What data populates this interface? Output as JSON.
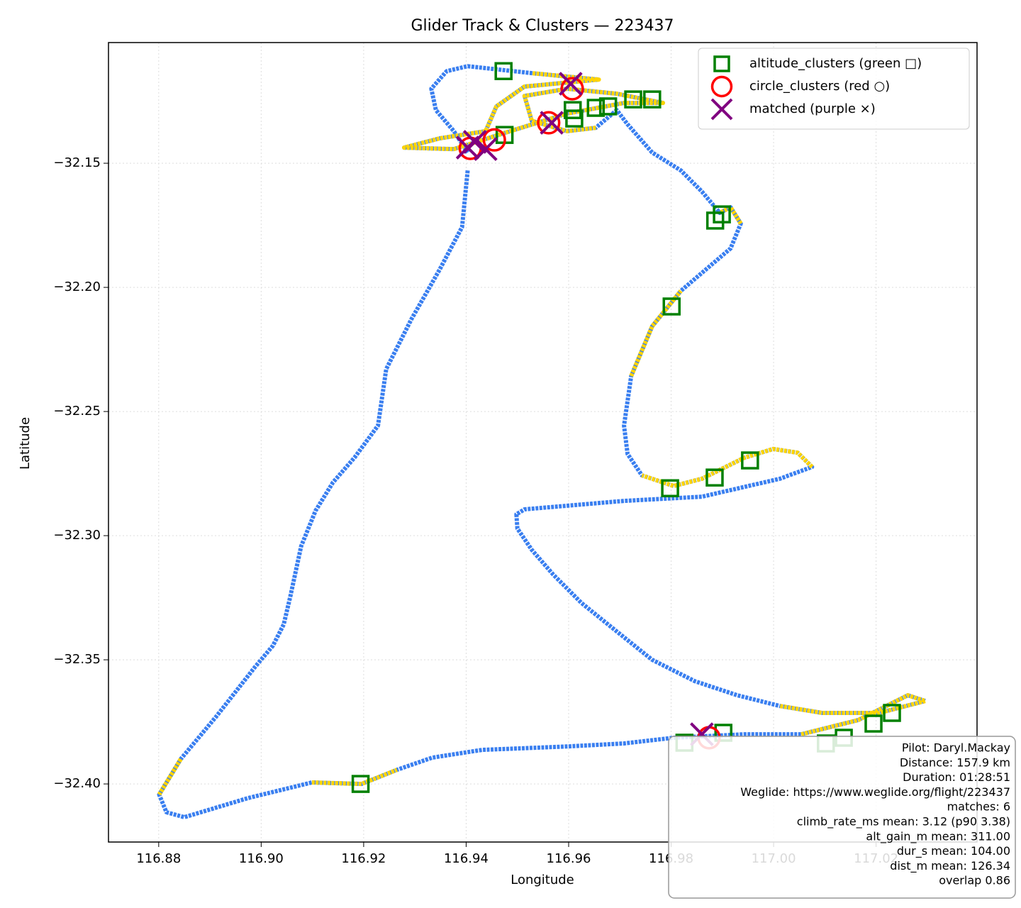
{
  "chart_data": {
    "type": "line",
    "title": "Glider Track & Clusters — 223437",
    "x_label": "Longitude",
    "y_label": "Latitude",
    "xlim": [
      116.8702,
      117.0397
    ],
    "ylim": [
      -32.4234,
      -32.1014
    ],
    "xticks": [
      116.88,
      {
        "value": 116.9,
        "label": "116.90"
      },
      116.92,
      116.94,
      116.96,
      116.98,
      {
        "value": 117,
        "label": "117.00"
      },
      {
        "value": 117.02,
        "label": "117.02"
      }
    ],
    "yticks": [
      {
        "value": -32.15,
        "label": "−32.15"
      },
      {
        "value": -32.2,
        "label": "−32.20"
      },
      {
        "value": -32.25,
        "label": "−32.25"
      },
      {
        "value": -32.3,
        "label": "−32.30"
      },
      {
        "value": -32.35,
        "label": "−32.35"
      },
      {
        "value": -32.4,
        "label": "−32.40"
      }
    ],
    "grid": true,
    "legend": "upper right",
    "series": [
      {
        "marker": "line",
        "color": "#3a7ff0",
        "x": [
          116.9403,
          116.9392,
          116.9348,
          116.9293,
          116.9244,
          116.9228,
          116.9182,
          116.914,
          116.9106,
          116.9078,
          116.9057,
          116.9044,
          116.9023,
          116.8988,
          116.8912,
          116.8843,
          116.8801,
          116.8815,
          116.885,
          116.8974,
          116.9099,
          116.9196,
          116.9265,
          116.9334,
          116.9431,
          116.9597,
          116.9708,
          116.9805,
          116.9943,
          117.0054,
          117.0165,
          117.0262,
          117.0296,
          117.0206,
          117.0095,
          117.0012,
          116.9929,
          116.9846,
          116.9763,
          116.9694,
          116.9625,
          116.957,
          116.9528,
          116.95,
          116.9498,
          116.9514,
          116.9708,
          116.986,
          117.0012,
          117.0075,
          117.0047,
          116.9999,
          116.9943,
          116.986,
          116.9805,
          116.9743,
          116.9715,
          116.9708,
          116.9722,
          116.9763,
          116.9819,
          116.9916,
          116.9936,
          116.9916,
          116.9895,
          116.986,
          116.9819,
          116.9763,
          116.9715,
          116.9694,
          116.9653,
          116.9597,
          116.9528,
          116.9514,
          116.9597,
          116.9694,
          116.9784,
          116.9708,
          116.9597,
          116.9486,
          116.9376,
          116.9279,
          116.9348,
          116.9438,
          116.9459,
          116.9514,
          116.9659,
          116.9528,
          116.9403,
          116.9362,
          116.9332,
          116.9341,
          116.9376,
          116.9403
        ],
        "values": [
          -32.1529,
          -32.1757,
          -32.1929,
          -32.2129,
          -32.2329,
          -32.2557,
          -32.2686,
          -32.2786,
          -32.29,
          -32.3043,
          -32.3243,
          -32.3357,
          -32.3443,
          -32.3529,
          -32.3729,
          -32.39,
          -32.4043,
          -32.4114,
          -32.4134,
          -32.4057,
          -32.3994,
          -32.4,
          -32.3943,
          -32.3894,
          -32.3863,
          -32.3849,
          -32.3837,
          -32.3814,
          -32.38,
          -32.38,
          -32.3743,
          -32.3643,
          -32.3666,
          -32.3714,
          -32.3714,
          -32.3686,
          -32.3643,
          -32.3586,
          -32.35,
          -32.3386,
          -32.3271,
          -32.3157,
          -32.3057,
          -32.2971,
          -32.2914,
          -32.2894,
          -32.286,
          -32.2843,
          -32.2771,
          -32.2723,
          -32.2666,
          -32.2651,
          -32.2686,
          -32.2771,
          -32.28,
          -32.2757,
          -32.2671,
          -32.2557,
          -32.2357,
          -32.2157,
          -32.2014,
          -32.1843,
          -32.1743,
          -32.1677,
          -32.17,
          -32.1614,
          -32.1529,
          -32.1457,
          -32.1343,
          -32.1286,
          -32.1357,
          -32.1371,
          -32.1329,
          -32.1229,
          -32.12,
          -32.122,
          -32.1257,
          -32.1257,
          -32.13,
          -32.1371,
          -32.1443,
          -32.1437,
          -32.14,
          -32.1371,
          -32.1271,
          -32.1191,
          -32.1163,
          -32.1137,
          -32.1109,
          -32.1129,
          -32.12,
          -32.1286,
          -32.1371,
          -32.1457
        ]
      },
      {
        "marker": "line",
        "color": "#ffd400",
        "x": [
          116.9403,
          116.9392,
          116.9348,
          116.9293,
          116.9244,
          116.9228,
          116.9182,
          116.914,
          116.9106,
          116.9078,
          116.9057,
          116.9044,
          116.9023,
          116.8988,
          116.8912,
          116.8843,
          116.8801,
          116.8815,
          116.885,
          116.8974,
          116.9099,
          116.9196,
          116.9265,
          116.9334,
          116.9431,
          116.9597,
          116.9708,
          116.9805,
          116.9943,
          117.0054,
          117.0165,
          117.0262,
          117.0296,
          117.0206,
          117.0095,
          117.0012,
          116.9929,
          116.9846,
          116.9763,
          116.9694,
          116.9625,
          116.957,
          116.9528,
          116.95,
          116.9498,
          116.9514,
          116.9708,
          116.986,
          117.0012,
          117.0075,
          117.0047,
          116.9999,
          116.9943,
          116.986,
          116.9805,
          116.9743,
          116.9715,
          116.9708,
          116.9722,
          116.9763,
          116.9819,
          116.9916,
          116.9936,
          116.9916,
          116.9895,
          116.986,
          116.9819,
          116.9763,
          116.9715,
          116.9694,
          116.9653,
          116.9597,
          116.9528,
          116.9514,
          116.9597,
          116.9694,
          116.9784,
          116.9708,
          116.9597,
          116.9486,
          116.9376,
          116.9279,
          116.9348,
          116.9438,
          116.9459,
          116.9514,
          116.9659,
          116.9528,
          116.9403,
          116.9362,
          116.9332,
          116.9341,
          116.9376,
          116.9403
        ],
        "values": [
          null,
          null,
          null,
          null,
          null,
          null,
          null,
          null,
          null,
          null,
          null,
          null,
          null,
          null,
          null,
          -32.39,
          -32.4043,
          null,
          null,
          null,
          -32.3994,
          -32.4,
          -32.3943,
          null,
          null,
          null,
          null,
          null,
          null,
          -32.38,
          -32.3743,
          -32.3643,
          -32.3666,
          -32.3714,
          -32.3714,
          -32.3686,
          null,
          null,
          null,
          null,
          null,
          null,
          null,
          null,
          null,
          null,
          null,
          null,
          null,
          -32.2723,
          -32.2666,
          -32.2651,
          -32.2686,
          -32.2771,
          -32.28,
          -32.2757,
          null,
          null,
          -32.2357,
          -32.2157,
          -32.2014,
          null,
          -32.1743,
          -32.1677,
          -32.17,
          null,
          null,
          null,
          null,
          null,
          -32.1357,
          -32.1371,
          -32.1329,
          -32.1229,
          -32.12,
          -32.122,
          -32.1257,
          -32.1257,
          -32.13,
          -32.1371,
          -32.1443,
          -32.1437,
          -32.14,
          -32.1371,
          -32.1271,
          -32.1191,
          -32.1163,
          -32.1137,
          null,
          null,
          null,
          null,
          null,
          null
        ]
      },
      {
        "name": "altitude_clusters (green □)",
        "marker": "square",
        "color": "#008000",
        "x": [
          116.9473,
          116.9475,
          116.9608,
          116.9611,
          116.9653,
          116.9677,
          116.9726,
          116.9763,
          116.9886,
          116.9899,
          116.9801,
          116.9798,
          116.9885,
          116.9954,
          116.9194,
          116.9902,
          117.0137,
          117.0195,
          117.0231,
          116.9826,
          117.0102
        ],
        "values": [
          -32.1129,
          -32.1386,
          -32.1286,
          -32.132,
          -32.1277,
          -32.1271,
          -32.1243,
          -32.1243,
          -32.1731,
          -32.1706,
          -32.2077,
          -32.2809,
          -32.2766,
          -32.2697,
          -32.4,
          -32.3794,
          -32.3814,
          -32.3757,
          -32.3714,
          -32.3834,
          -32.3837
        ]
      },
      {
        "name": "circle_clusters (red ○)",
        "marker": "circle",
        "color": "#ff0000",
        "x": [
          116.9607,
          116.9408,
          116.9455,
          116.9561,
          116.9874
        ],
        "values": [
          -32.12,
          -32.144,
          -32.1406,
          -32.1337,
          -32.3814
        ]
      },
      {
        "name": "matched (purple ×)",
        "marker": "cross",
        "color": "#800080",
        "x": [
          116.9604,
          116.9403,
          116.9438,
          116.9567,
          116.986,
          116.9417
        ],
        "values": [
          -32.118,
          -32.1437,
          -32.1443,
          -32.1337,
          -32.38,
          -32.1414
        ]
      }
    ],
    "annotation": [
      "Pilot: Daryl.Mackay",
      "Distance: 157.9 km",
      "Duration: 01:28:51",
      "Weglide: https://www.weglide.org/flight/223437",
      "matches: 6",
      "climb_rate_ms mean: 3.12 (p90 3.38)",
      "alt_gain_m mean: 311.00",
      "dur_s mean: 104.00",
      "dist_m mean: 126.34",
      "overlap 0.86"
    ]
  }
}
